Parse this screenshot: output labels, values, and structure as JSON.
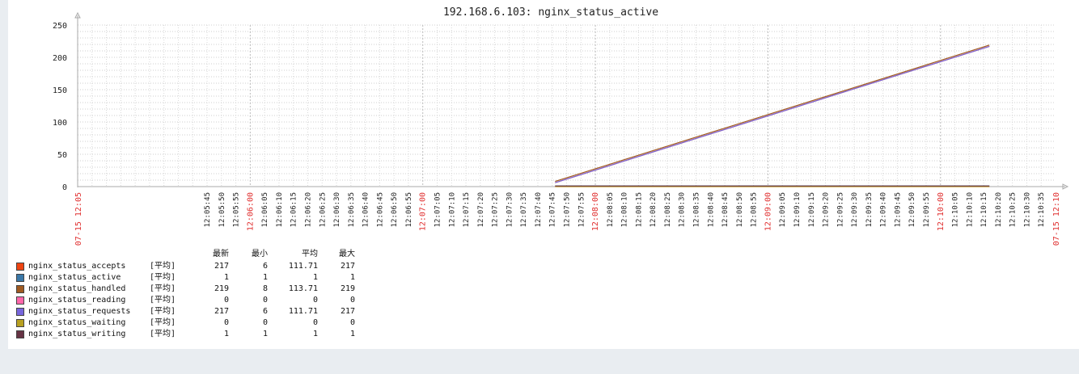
{
  "chart_data": {
    "type": "line",
    "title": "192.168.6.103: nginx_status_active",
    "ylim": [
      0,
      250
    ],
    "yticks": [
      "0",
      "50",
      "100",
      "150",
      "200",
      "250"
    ],
    "x_range": [
      "12:05:00",
      "12:10:40"
    ],
    "x_tick_labels": [
      "12:05:45",
      "12:05:50",
      "12:05:55",
      "12:06:00",
      "12:06:05",
      "12:06:10",
      "12:06:15",
      "12:06:20",
      "12:06:25",
      "12:06:30",
      "12:06:35",
      "12:06:40",
      "12:06:45",
      "12:06:50",
      "12:06:55",
      "12:07:00",
      "12:07:05",
      "12:07:10",
      "12:07:15",
      "12:07:20",
      "12:07:25",
      "12:07:30",
      "12:07:35",
      "12:07:40",
      "12:07:45",
      "12:07:50",
      "12:07:55",
      "12:08:00",
      "12:08:05",
      "12:08:10",
      "12:08:15",
      "12:08:20",
      "12:08:25",
      "12:08:30",
      "12:08:35",
      "12:08:40",
      "12:08:45",
      "12:08:50",
      "12:08:55",
      "12:09:00",
      "12:09:05",
      "12:09:10",
      "12:09:15",
      "12:09:20",
      "12:09:25",
      "12:09:30",
      "12:09:35",
      "12:09:40",
      "12:09:45",
      "12:09:50",
      "12:09:55",
      "12:10:00",
      "12:10:05",
      "12:10:10",
      "12:10:15",
      "12:10:20",
      "12:10:25",
      "12:10:30",
      "12:10:35"
    ],
    "x_major_labels": [
      "12:06:00",
      "12:07:00",
      "12:08:00",
      "12:09:00",
      "12:10:00"
    ],
    "x_start_label": "07-15 12:05",
    "x_end_label": "07-15 12:10",
    "series_x": [
      "12:07:46",
      "12:10:17"
    ],
    "series": [
      {
        "name": "nginx_status_accepts",
        "color": "#ee4411",
        "values": [
          6,
          217
        ]
      },
      {
        "name": "nginx_status_active",
        "color": "#3a78a8",
        "values": [
          1,
          1
        ]
      },
      {
        "name": "nginx_status_handled",
        "color": "#a05a20",
        "values": [
          8,
          219
        ]
      },
      {
        "name": "nginx_status_reading",
        "color": "#ff66aa",
        "values": [
          0,
          0
        ]
      },
      {
        "name": "nginx_status_requests",
        "color": "#7766dd",
        "values": [
          6,
          217
        ]
      },
      {
        "name": "nginx_status_waiting",
        "color": "#b8a020",
        "values": [
          0,
          0
        ]
      },
      {
        "name": "nginx_status_writing",
        "color": "#663344",
        "values": [
          1,
          1
        ]
      }
    ],
    "grid": true,
    "legend_placement": "bottom-left"
  },
  "legend": {
    "headers": {
      "last": "最新",
      "min": "最小",
      "avg": "平均",
      "max": "最大"
    },
    "rows": [
      {
        "name": "nginx_status_accepts",
        "func": "[平均]",
        "last": "217",
        "min": "6",
        "avg": "111.71",
        "max": "217",
        "color": "#ee4411"
      },
      {
        "name": "nginx_status_active",
        "func": "[平均]",
        "last": "1",
        "min": "1",
        "avg": "1",
        "max": "1",
        "color": "#3a78a8"
      },
      {
        "name": "nginx_status_handled",
        "func": "[平均]",
        "last": "219",
        "min": "8",
        "avg": "113.71",
        "max": "219",
        "color": "#a05a20"
      },
      {
        "name": "nginx_status_reading",
        "func": "[平均]",
        "last": "0",
        "min": "0",
        "avg": "0",
        "max": "0",
        "color": "#ff66aa"
      },
      {
        "name": "nginx_status_requests",
        "func": "[平均]",
        "last": "217",
        "min": "6",
        "avg": "111.71",
        "max": "217",
        "color": "#7766dd"
      },
      {
        "name": "nginx_status_waiting",
        "func": "[平均]",
        "last": "0",
        "min": "0",
        "avg": "0",
        "max": "0",
        "color": "#b8a020"
      },
      {
        "name": "nginx_status_writing",
        "func": "[平均]",
        "last": "1",
        "min": "1",
        "avg": "1",
        "max": "1",
        "color": "#663344"
      }
    ]
  }
}
